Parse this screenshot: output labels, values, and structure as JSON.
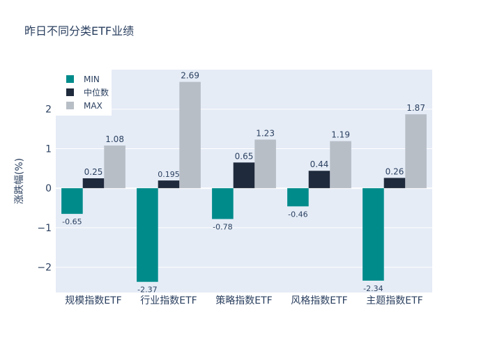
{
  "chart_data": {
    "type": "bar",
    "title": "昨日不同分类ETF业绩",
    "xlabel": "",
    "ylabel": "涨跌幅(%)",
    "categories": [
      "规模指数ETF",
      "行业指数ETF",
      "策略指数ETF",
      "风格指数ETF",
      "主题指数ETF"
    ],
    "series": [
      {
        "name": "MIN",
        "values": [
          -0.65,
          -2.37,
          -0.78,
          -0.46,
          -2.34
        ],
        "labels": [
          "-0.65",
          "-2.37",
          "-0.78",
          "-0.46",
          "-2.34"
        ],
        "color": "#008b8b"
      },
      {
        "name": "中位数",
        "values": [
          0.25,
          0.195,
          0.65,
          0.44,
          0.26
        ],
        "labels": [
          "0.25",
          "0.195",
          "0.65",
          "0.44",
          "0.26"
        ],
        "color": "#1f2a3c"
      },
      {
        "name": "MAX",
        "values": [
          1.08,
          2.69,
          1.23,
          1.19,
          1.87
        ],
        "labels": [
          "1.08",
          "2.69",
          "1.23",
          "1.19",
          "1.87"
        ],
        "color": "#b8bec6"
      }
    ],
    "ylim": [
      -2.64,
      3.0
    ],
    "yticks": [
      -2,
      -1,
      0,
      1,
      2
    ],
    "ytick_labels": [
      "−2",
      "−1",
      "0",
      "1",
      "2"
    ],
    "grid": true,
    "legend_position": "top-left",
    "colors": {
      "plot_bg": "#e5ecf6",
      "grid": "#ffffff",
      "text": "#2a3f5f"
    }
  }
}
